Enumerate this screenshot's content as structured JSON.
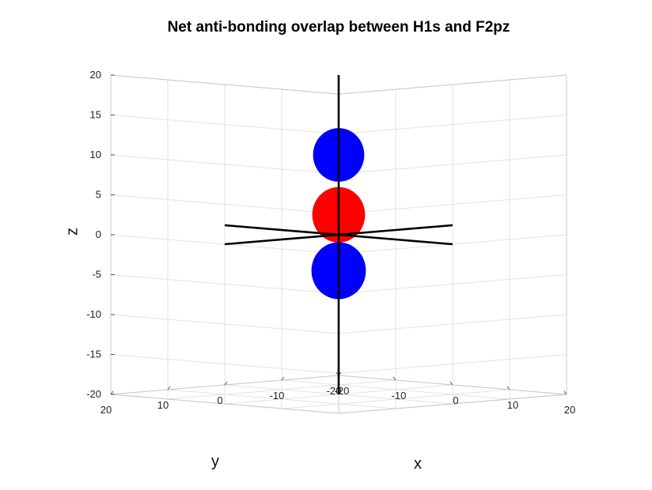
{
  "chart_data": {
    "type": "3d-surface",
    "title": "Net anti-bonding overlap between H1s and F2pz",
    "xlabel": "x",
    "ylabel": "y",
    "zlabel": "z",
    "xlim": [
      -20,
      20
    ],
    "ylim": [
      -20,
      20
    ],
    "zlim": [
      -20,
      20
    ],
    "xticks": [
      "-20",
      "-10",
      "0",
      "10",
      "20"
    ],
    "yticks": [
      "-20",
      "-10",
      "0",
      "10",
      "20"
    ],
    "zticks": [
      "-20",
      "-15",
      "-10",
      "-5",
      "0",
      "5",
      "10",
      "15",
      "20"
    ],
    "grid": true,
    "lobes": [
      {
        "name": "upper",
        "center_z": 10,
        "radius": 3.2,
        "color": "#0000ff"
      },
      {
        "name": "middle",
        "center_z": 2.5,
        "radius": 3.3,
        "color": "#ff0000"
      },
      {
        "name": "lower",
        "center_z": -4.5,
        "radius": 3.4,
        "color": "#0000ff"
      }
    ],
    "axis_lines": {
      "extent": 20,
      "color": "#000000"
    }
  }
}
